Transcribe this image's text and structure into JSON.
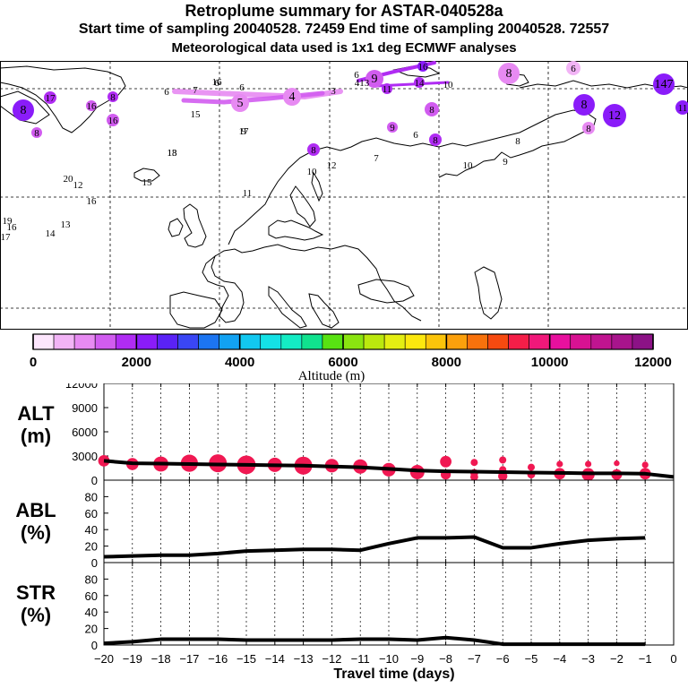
{
  "header": {
    "title": "Retroplume summary for ASTAR-040528a",
    "sampling": "Start time of sampling 20040528. 72459     End time of sampling 20040528. 72557",
    "met": "Meteorological data used is 1x1 deg ECMWF analyses"
  },
  "colorbar": {
    "label": "Altitude (m)",
    "ticks": [
      "0",
      "2000",
      "4000",
      "6000",
      "8000",
      "10000",
      "12000"
    ],
    "colors": [
      "#fde6fd",
      "#f2b4f6",
      "#e78af2",
      "#d15cf0",
      "#b02cf3",
      "#8a1cf9",
      "#5a22f6",
      "#3a46f4",
      "#1c75f1",
      "#12a2f2",
      "#12c8f0",
      "#14e2e6",
      "#14ecc4",
      "#10e28e",
      "#58e212",
      "#8ae410",
      "#bbe80e",
      "#e4ee12",
      "#fce80e",
      "#fbc40a",
      "#fba00c",
      "#f8720c",
      "#f64a10",
      "#f41e48",
      "#f0187a",
      "#e8109e",
      "#d81292",
      "#c01490",
      "#a8148c",
      "#8c1286"
    ]
  },
  "map_labels": [
    {
      "t": "6",
      "c": "#f2b4f6"
    },
    {
      "t": "8",
      "c": "#f2b4f6"
    },
    {
      "t": "147",
      "c": "#e78af2"
    },
    {
      "t": "16",
      "c": "#8a1cf9"
    },
    {
      "t": "14",
      "c": "#b02cf3"
    },
    {
      "t": "11",
      "c": "#b02cf3"
    },
    {
      "t": "10",
      "c": "#d15cf0"
    },
    {
      "t": "9",
      "c": "#d15cf0"
    },
    {
      "t": "413",
      "c": "#d15cf0"
    },
    {
      "t": "16",
      "c": "#d15cf0"
    },
    {
      "t": "6",
      "c": "#e78af2"
    },
    {
      "t": "7",
      "c": "#e78af2"
    },
    {
      "t": "5",
      "c": "#e78af2"
    },
    {
      "t": "4",
      "c": "#e78af2"
    },
    {
      "t": "3",
      "c": "#e78af2"
    },
    {
      "t": "8",
      "c": "#d15cf0"
    },
    {
      "t": "12",
      "c": "#8a1cf9"
    },
    {
      "t": "11",
      "c": "#8a1cf9"
    },
    {
      "t": "8",
      "c": "#8a1cf9"
    },
    {
      "t": "8",
      "c": "#d15cf0"
    },
    {
      "t": "9",
      "c": "#d15cf0"
    },
    {
      "t": "17",
      "c": "#d15cf0"
    },
    {
      "t": "8",
      "c": "#b02cf3"
    },
    {
      "t": "16",
      "c": "#d15cf0"
    },
    {
      "t": "8",
      "c": "#d15cf0"
    },
    {
      "t": "16",
      "c": "#d15cf0"
    },
    {
      "t": "15",
      "c": "#d15cf0"
    },
    {
      "t": "13",
      "c": "#d15cf0"
    },
    {
      "t": "9",
      "c": "#d15cf0"
    },
    {
      "t": "6",
      "c": "#e78af2"
    },
    {
      "t": "10",
      "c": "#e78af2"
    },
    {
      "t": "9",
      "c": "#e78af2"
    },
    {
      "t": "17",
      "c": "#d15cf0"
    },
    {
      "t": "18",
      "c": "#d15cf0"
    },
    {
      "t": "8",
      "c": "#d15cf0"
    },
    {
      "t": "8",
      "c": "#b02cf3"
    },
    {
      "t": "10",
      "c": "#d15cf0"
    },
    {
      "t": "12",
      "c": "#d15cf0"
    },
    {
      "t": "15",
      "c": "#d15cf0"
    },
    {
      "t": "20",
      "c": "#d15cf0"
    },
    {
      "t": "12",
      "c": "#d15cf0"
    },
    {
      "t": "16",
      "c": "#d15cf0"
    },
    {
      "t": "11",
      "c": "#d15cf0"
    },
    {
      "t": "19",
      "c": "#d15cf0"
    },
    {
      "t": "16",
      "c": "#d15cf0"
    },
    {
      "t": "17",
      "c": "#d15cf0"
    },
    {
      "t": "14",
      "c": "#d15cf0"
    },
    {
      "t": "13",
      "c": "#d15cf0"
    },
    {
      "t": "6",
      "c": "#d15cf0"
    },
    {
      "t": "8",
      "c": "#d15cf0"
    },
    {
      "t": "8",
      "c": "#b02cf3"
    },
    {
      "t": "7",
      "c": "#b02cf3"
    },
    {
      "t": "6",
      "c": "#f2b4f6"
    },
    {
      "t": "6",
      "c": "#d15cf0"
    }
  ],
  "chart_data": [
    {
      "type": "line",
      "id": "alt",
      "label_top": "ALT",
      "label_bottom": "(m)",
      "ylim": [
        0,
        12000
      ],
      "yticks": [
        "12000",
        "9000",
        "6000",
        "3000",
        "0"
      ],
      "xlim": [
        -20,
        0
      ],
      "line": {
        "x": [
          -20,
          -19,
          -18,
          -17,
          -16,
          -15,
          -14,
          -13,
          -12,
          -11,
          -10,
          -9,
          -8,
          -7,
          -6,
          -5,
          -4,
          -3,
          -2,
          -1,
          0
        ],
        "y": [
          2400,
          2100,
          2050,
          2000,
          1950,
          1900,
          1850,
          1800,
          1700,
          1600,
          1400,
          1200,
          1100,
          1050,
          1000,
          950,
          900,
          850,
          850,
          800,
          400
        ]
      },
      "points": [
        {
          "x": -20,
          "y": 2400,
          "s": 0.55
        },
        {
          "x": -19,
          "y": 2000,
          "s": 0.6
        },
        {
          "x": -18,
          "y": 2000,
          "s": 0.8
        },
        {
          "x": -17,
          "y": 2100,
          "s": 0.95
        },
        {
          "x": -16,
          "y": 2100,
          "s": 1.0
        },
        {
          "x": -15,
          "y": 1900,
          "s": 1.05
        },
        {
          "x": -14,
          "y": 1900,
          "s": 0.75
        },
        {
          "x": -13,
          "y": 1800,
          "s": 1.0
        },
        {
          "x": -12,
          "y": 1800,
          "s": 0.7
        },
        {
          "x": -11,
          "y": 1700,
          "s": 0.75
        },
        {
          "x": -10,
          "y": 1300,
          "s": 0.7
        },
        {
          "x": -9,
          "y": 1000,
          "s": 0.75
        },
        {
          "x": -8,
          "y": 2300,
          "s": 0.55
        },
        {
          "x": -8,
          "y": 700,
          "s": 0.45
        },
        {
          "x": -7,
          "y": 2200,
          "s": 0.25
        },
        {
          "x": -7,
          "y": 900,
          "s": 0.3
        },
        {
          "x": -7,
          "y": 400,
          "s": 0.3
        },
        {
          "x": -6,
          "y": 2500,
          "s": 0.25
        },
        {
          "x": -6,
          "y": 1300,
          "s": 0.25
        },
        {
          "x": -6,
          "y": 500,
          "s": 0.4
        },
        {
          "x": -5,
          "y": 1600,
          "s": 0.25
        },
        {
          "x": -5,
          "y": 700,
          "s": 0.3
        },
        {
          "x": -4,
          "y": 2000,
          "s": 0.2
        },
        {
          "x": -4,
          "y": 800,
          "s": 0.55
        },
        {
          "x": -3,
          "y": 2000,
          "s": 0.2
        },
        {
          "x": -3,
          "y": 700,
          "s": 0.65
        },
        {
          "x": -2,
          "y": 2100,
          "s": 0.15
        },
        {
          "x": -2,
          "y": 700,
          "s": 0.5
        },
        {
          "x": -1,
          "y": 1900,
          "s": 0.2
        },
        {
          "x": -1,
          "y": 800,
          "s": 0.55
        }
      ]
    },
    {
      "type": "line",
      "id": "abl",
      "label_top": "ABL",
      "label_bottom": "(%)",
      "ylim": [
        0,
        100
      ],
      "yticks": [
        "80",
        "60",
        "40",
        "20",
        "0"
      ],
      "xlim": [
        -20,
        0
      ],
      "line": {
        "x": [
          -20,
          -19,
          -18,
          -17,
          -16,
          -15,
          -14,
          -13,
          -12,
          -11,
          -10,
          -9,
          -8,
          -7,
          -6,
          -5,
          -4,
          -3,
          -2,
          -1
        ],
        "y": [
          7,
          8,
          9,
          9,
          11,
          14,
          15,
          16,
          16,
          15,
          23,
          30,
          30,
          31,
          18,
          18,
          23,
          27,
          29,
          30
        ]
      }
    },
    {
      "type": "line",
      "id": "str",
      "label_top": "STR",
      "label_bottom": "(%)",
      "ylim": [
        0,
        100
      ],
      "yticks": [
        "80",
        "60",
        "40",
        "20",
        "0"
      ],
      "xlim": [
        -20,
        0
      ],
      "xticks": [
        "-20",
        "-19",
        "-18",
        "-17",
        "-16",
        "-15",
        "-14",
        "-13",
        "-12",
        "-11",
        "-10",
        "-9",
        "-8",
        "-7",
        "-6",
        "-5",
        "-4",
        "-3",
        "-2",
        "-1",
        "0"
      ],
      "xlabel": "Travel time (days)",
      "line": {
        "x": [
          -20,
          -19,
          -18,
          -17,
          -16,
          -15,
          -14,
          -13,
          -12,
          -11,
          -10,
          -9,
          -8,
          -7,
          -6,
          -5,
          -4,
          -3,
          -2,
          -1
        ],
        "y": [
          2,
          4,
          7,
          7,
          7,
          6,
          6,
          6,
          6,
          7,
          7,
          6,
          9,
          6,
          1,
          1,
          1,
          1,
          1,
          1
        ]
      }
    }
  ]
}
